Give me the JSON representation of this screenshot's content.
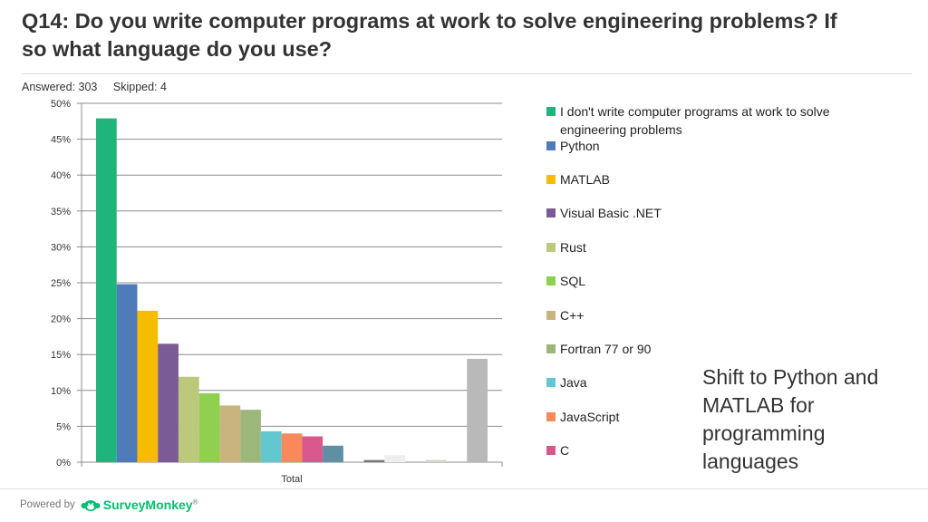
{
  "question": {
    "title": "Q14: Do you write computer programs at work to solve engineering problems? If so what language do you use?",
    "answered": "Answered: 303",
    "skipped": "Skipped: 4"
  },
  "callout": "Shift to Python and MATLAB for programming languages",
  "footer": {
    "powered_by": "Powered by",
    "brand": "SurveyMonkey",
    "trademark": "®",
    "logo_icon": "surveymonkey-logo-icon"
  },
  "chart_data": {
    "type": "bar",
    "title": "",
    "xlabel": "",
    "ylabel": "",
    "categories": [
      "Total"
    ],
    "ylim": [
      0,
      50
    ],
    "yticks": [
      "0%",
      "5%",
      "10%",
      "15%",
      "20%",
      "25%",
      "30%",
      "35%",
      "40%",
      "45%",
      "50%"
    ],
    "grid": true,
    "legend_position": "right",
    "series": [
      {
        "name": "I don't write computer programs at work to solve engineering problems",
        "value": 47.9,
        "color": "#1fb57a",
        "in_legend": true
      },
      {
        "name": "Python",
        "value": 24.8,
        "color": "#4f7bb8",
        "in_legend": true
      },
      {
        "name": "MATLAB",
        "value": 21.1,
        "color": "#f5bc00",
        "in_legend": true
      },
      {
        "name": "Visual Basic .NET",
        "value": 16.5,
        "color": "#7b5b96",
        "in_legend": true
      },
      {
        "name": "Rust",
        "value": 11.9,
        "color": "#bcc97c",
        "in_legend": true
      },
      {
        "name": "SQL",
        "value": 9.6,
        "color": "#8fd14f",
        "in_legend": true
      },
      {
        "name": "C++",
        "value": 7.9,
        "color": "#c9b47f",
        "in_legend": true
      },
      {
        "name": "Fortran 77 or 90",
        "value": 7.3,
        "color": "#9db67a",
        "in_legend": true
      },
      {
        "name": "Java",
        "value": 4.3,
        "color": "#63c7cf",
        "in_legend": true
      },
      {
        "name": "JavaScript",
        "value": 4.0,
        "color": "#f7895a",
        "in_legend": true
      },
      {
        "name": "C",
        "value": 3.6,
        "color": "#d8588c",
        "in_legend": true
      },
      {
        "name": "",
        "value": 2.3,
        "color": "#5e8fa3",
        "in_legend": false
      },
      {
        "name": "",
        "value": 0.0,
        "color": "#999999",
        "in_legend": false
      },
      {
        "name": "",
        "value": 0.3,
        "color": "#777777",
        "in_legend": false
      },
      {
        "name": "",
        "value": 1.0,
        "color": "#eeeeee",
        "in_legend": false
      },
      {
        "name": "",
        "value": 0.0,
        "color": "#cccccc",
        "in_legend": false
      },
      {
        "name": "",
        "value": 0.3,
        "color": "#d8d4c0",
        "in_legend": false
      },
      {
        "name": "",
        "value": 0.0,
        "color": "#bbbbbb",
        "in_legend": false
      },
      {
        "name": "",
        "value": 14.4,
        "color": "#b9b9b9",
        "in_legend": false
      }
    ]
  }
}
